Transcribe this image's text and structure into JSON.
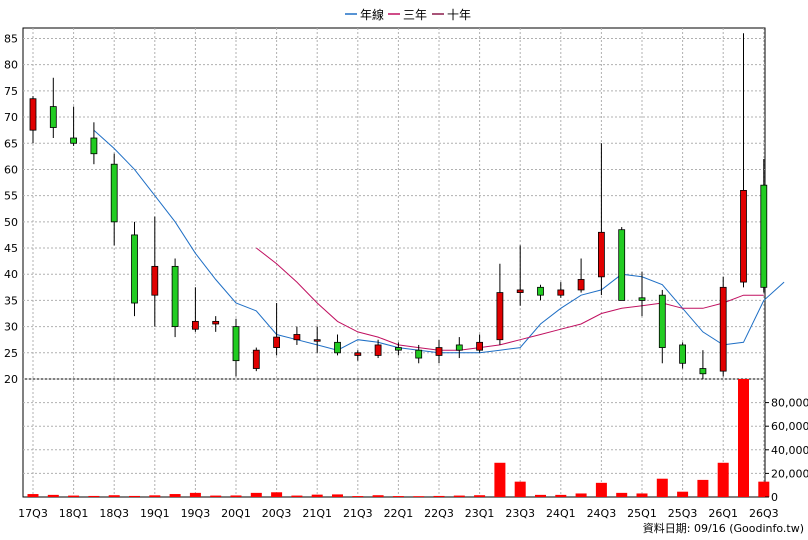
{
  "chart_data": {
    "type": "candlestick",
    "legend": [
      {
        "name": "年線",
        "color": "#1f6fc5"
      },
      {
        "name": "三年",
        "color": "#c01060"
      },
      {
        "name": "十年",
        "color": "#8a1a4a"
      }
    ],
    "ylim": [
      20,
      87
    ],
    "y_ticks": [
      20,
      25,
      30,
      35,
      40,
      45,
      50,
      55,
      60,
      65,
      70,
      75,
      80,
      85
    ],
    "volume_ylim": [
      0,
      100000
    ],
    "volume_ticks": [
      "0",
      "20,000",
      "40,000",
      "60,000",
      "80,000"
    ],
    "volume_tick_values": [
      0,
      20000,
      40000,
      60000,
      80000
    ],
    "x_labels": [
      "17Q3",
      "18Q1",
      "18Q3",
      "19Q1",
      "19Q3",
      "20Q1",
      "20Q3",
      "21Q1",
      "21Q3",
      "22Q1",
      "22Q3",
      "23Q1",
      "23Q3",
      "24Q1",
      "24Q3",
      "25Q1",
      "25Q3",
      "26Q1",
      "26Q3"
    ],
    "grid": true,
    "footer": "資料日期: 09/16  (Goodinfo.tw)",
    "candles": [
      {
        "o": 67.5,
        "h": 74.0,
        "l": 65.0,
        "c": 73.5,
        "v": 2500
      },
      {
        "o": 72.0,
        "h": 77.5,
        "l": 66.0,
        "c": 68.0,
        "v": 1800
      },
      {
        "o": 66.0,
        "h": 72.0,
        "l": 64.5,
        "c": 65.0,
        "v": 1200
      },
      {
        "o": 66.0,
        "h": 69.0,
        "l": 61.0,
        "c": 63.0,
        "v": 900
      },
      {
        "o": 61.0,
        "h": 63.0,
        "l": 45.5,
        "c": 50.0,
        "v": 1500
      },
      {
        "o": 47.5,
        "h": 50.0,
        "l": 32.0,
        "c": 34.5,
        "v": 900
      },
      {
        "o": 36.0,
        "h": 51.0,
        "l": 30.0,
        "c": 41.5,
        "v": 1400
      },
      {
        "o": 41.5,
        "h": 43.0,
        "l": 28.0,
        "c": 30.0,
        "v": 2500
      },
      {
        "o": 29.5,
        "h": 37.5,
        "l": 29.0,
        "c": 31.0,
        "v": 3500
      },
      {
        "o": 30.5,
        "h": 32.0,
        "l": 29.0,
        "c": 31.0,
        "v": 1200
      },
      {
        "o": 30.0,
        "h": 31.5,
        "l": 20.5,
        "c": 23.5,
        "v": 1300
      },
      {
        "o": 22.0,
        "h": 26.0,
        "l": 21.5,
        "c": 25.5,
        "v": 3500
      },
      {
        "o": 26.0,
        "h": 34.5,
        "l": 24.5,
        "c": 28.0,
        "v": 4000
      },
      {
        "o": 27.5,
        "h": 30.0,
        "l": 26.5,
        "c": 28.5,
        "v": 1200
      },
      {
        "o": 27.5,
        "h": 30.0,
        "l": 25.0,
        "c": 27.5,
        "v": 2000
      },
      {
        "o": 27.0,
        "h": 28.5,
        "l": 24.5,
        "c": 25.0,
        "v": 2200
      },
      {
        "o": 24.5,
        "h": 25.5,
        "l": 23.5,
        "c": 25.0,
        "v": 800
      },
      {
        "o": 24.5,
        "h": 27.5,
        "l": 24.0,
        "c": 26.5,
        "v": 1500
      },
      {
        "o": 26.0,
        "h": 27.0,
        "l": 24.5,
        "c": 25.5,
        "v": 800
      },
      {
        "o": 25.5,
        "h": 26.5,
        "l": 23.0,
        "c": 24.0,
        "v": 700
      },
      {
        "o": 24.5,
        "h": 27.5,
        "l": 23.0,
        "c": 26.0,
        "v": 900
      },
      {
        "o": 26.5,
        "h": 28.0,
        "l": 24.0,
        "c": 25.5,
        "v": 1200
      },
      {
        "o": 25.5,
        "h": 28.5,
        "l": 25.0,
        "c": 27.0,
        "v": 1500
      },
      {
        "o": 27.5,
        "h": 42.0,
        "l": 26.5,
        "c": 36.5,
        "v": 29000
      },
      {
        "o": 36.5,
        "h": 45.5,
        "l": 34.0,
        "c": 37.0,
        "v": 13000
      },
      {
        "o": 37.5,
        "h": 38.0,
        "l": 35.0,
        "c": 36.0,
        "v": 1800
      },
      {
        "o": 36.0,
        "h": 38.5,
        "l": 35.5,
        "c": 37.0,
        "v": 1800
      },
      {
        "o": 37.0,
        "h": 43.0,
        "l": 36.5,
        "c": 39.0,
        "v": 3000
      },
      {
        "o": 39.5,
        "h": 65.0,
        "l": 36.0,
        "c": 48.0,
        "v": 12000
      },
      {
        "o": 48.5,
        "h": 49.0,
        "l": 35.0,
        "c": 35.0,
        "v": 3500
      },
      {
        "o": 35.5,
        "h": 40.5,
        "l": 32.0,
        "c": 35.0,
        "v": 3000
      },
      {
        "o": 36.0,
        "h": 37.0,
        "l": 23.0,
        "c": 26.0,
        "v": 15500
      },
      {
        "o": 26.5,
        "h": 27.0,
        "l": 22.0,
        "c": 23.0,
        "v": 4500
      },
      {
        "o": 22.0,
        "h": 25.5,
        "l": 20.0,
        "c": 21.0,
        "v": 14500
      },
      {
        "o": 21.5,
        "h": 39.5,
        "l": 20.5,
        "c": 37.5,
        "v": 29000
      },
      {
        "o": 38.5,
        "h": 86.0,
        "l": 37.5,
        "c": 56.0,
        "v": 100000
      },
      {
        "o": 57.0,
        "h": 62.0,
        "l": 36.5,
        "c": 37.5,
        "v": 13000
      }
    ],
    "series": [
      {
        "name": "年線",
        "start": 3,
        "values": [
          67.5,
          64.0,
          60.0,
          55.0,
          50.0,
          44.0,
          39.0,
          34.5,
          33.0,
          28.5,
          27.5,
          26.5,
          25.5,
          27.5,
          27.0,
          26.0,
          25.5,
          25.0,
          25.0,
          25.0,
          25.5,
          26.0,
          30.5,
          33.5,
          36.0,
          37.0,
          40.0,
          39.5,
          38.0,
          33.5,
          29.0,
          26.5,
          27.0,
          35.0,
          38.5
        ]
      },
      {
        "name": "三年",
        "start": 11,
        "values": [
          45.0,
          42.0,
          38.5,
          34.5,
          31.0,
          29.0,
          28.0,
          26.5,
          26.0,
          25.5,
          25.5,
          26.0,
          26.5,
          27.5,
          28.5,
          29.5,
          30.5,
          32.5,
          33.5,
          34.0,
          34.5,
          33.5,
          33.5,
          34.5,
          36.0,
          36.0
        ]
      }
    ]
  }
}
